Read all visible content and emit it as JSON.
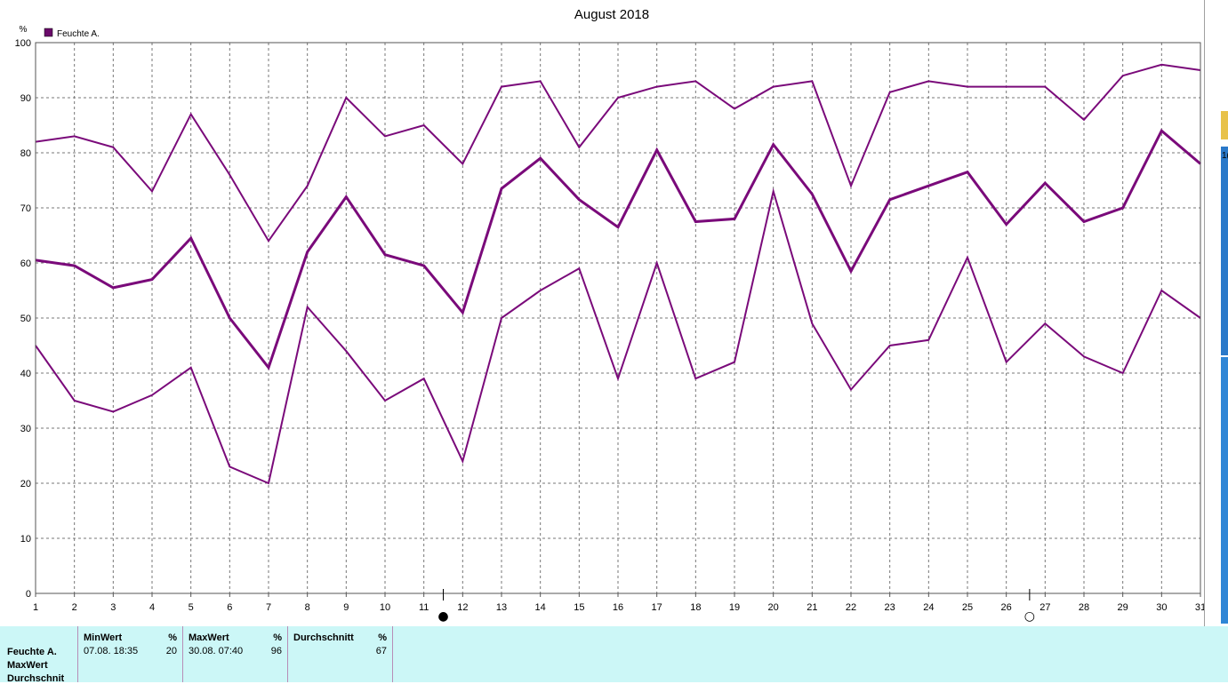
{
  "chart_data": {
    "type": "line",
    "title": "August 2018",
    "ylabel": "%",
    "ylim": [
      0,
      100
    ],
    "y_ticks": [
      0,
      10,
      20,
      30,
      40,
      50,
      60,
      70,
      80,
      90,
      100
    ],
    "x": [
      1,
      2,
      3,
      4,
      5,
      6,
      7,
      8,
      9,
      10,
      11,
      12,
      13,
      14,
      15,
      16,
      17,
      18,
      19,
      20,
      21,
      22,
      23,
      24,
      25,
      26,
      27,
      28,
      29,
      30,
      31
    ],
    "grid": true,
    "legend": {
      "position": "top-left",
      "entries": [
        "Feuchte A."
      ]
    },
    "color": "#7a0a7a",
    "series": [
      {
        "kind": "max",
        "values": [
          82,
          83,
          81,
          73,
          87,
          76,
          64,
          74,
          90,
          83,
          85,
          78,
          92,
          93,
          81,
          90,
          92,
          93,
          88,
          92,
          93,
          74,
          91,
          93,
          92,
          92,
          92,
          86,
          94,
          96,
          95
        ]
      },
      {
        "kind": "avg",
        "values": [
          60.5,
          59.5,
          55.5,
          57,
          64.5,
          50,
          41,
          62,
          72,
          61.5,
          59.5,
          51,
          73.5,
          79,
          71.5,
          66.5,
          80.5,
          67.5,
          68,
          81.5,
          72.5,
          58.5,
          71.5,
          74,
          76.5,
          67,
          74.5,
          67.5,
          70,
          84,
          78
        ]
      },
      {
        "kind": "min",
        "values": [
          45,
          35,
          33,
          36,
          41,
          23,
          20,
          52,
          44,
          35,
          39,
          24,
          50,
          55,
          59,
          39,
          60,
          39,
          42,
          73,
          49,
          37,
          45,
          46,
          61,
          42,
          49,
          43,
          40,
          55,
          50
        ]
      }
    ],
    "moon_phases": [
      {
        "day": 11.5,
        "symbol": "●"
      },
      {
        "day": 26.6,
        "symbol": "○"
      }
    ]
  },
  "stats": {
    "row_labels": [
      "Feuchte A.",
      "MaxWert",
      "Durchschnit"
    ],
    "columns": [
      {
        "title": "MinWert",
        "unit": "%",
        "date": "07.08.  18:35",
        "value": "20"
      },
      {
        "title": "MaxWert",
        "unit": "%",
        "date": "30.08.  07:40",
        "value": "96"
      },
      {
        "title": "Durchschnitt",
        "unit": "%",
        "date": "",
        "value": "67"
      }
    ]
  },
  "edge": {
    "text": "1("
  }
}
